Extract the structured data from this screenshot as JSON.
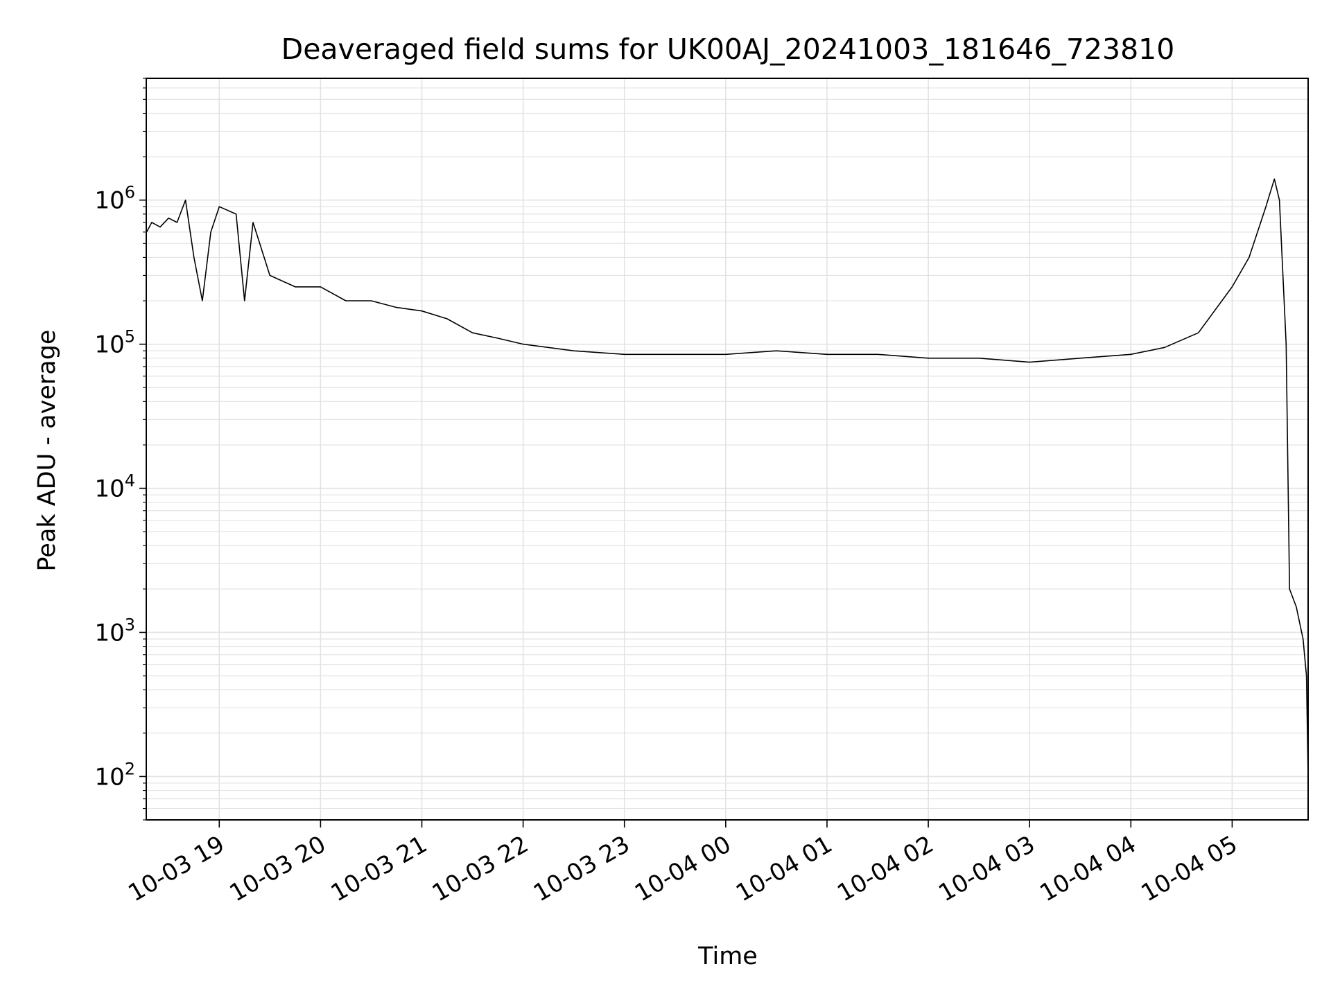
{
  "chart_data": {
    "type": "line",
    "title": "Deaveraged field sums for UK00AJ_20241003_181646_723810",
    "xlabel": "Time",
    "ylabel": "Peak ADU - average",
    "yscale": "log",
    "ylim": [
      50,
      7000000
    ],
    "xlim": [
      "2024-10-03 18:16:46",
      "2024-10-04 05:45:00"
    ],
    "grid": true,
    "x_tick_labels": [
      "10-03 19",
      "10-03 20",
      "10-03 21",
      "10-03 22",
      "10-03 23",
      "10-04 00",
      "10-04 01",
      "10-04 02",
      "10-04 03",
      "10-04 04",
      "10-04 05"
    ],
    "y_tick_labels": [
      {
        "base": "10",
        "exp": "2",
        "value": 100
      },
      {
        "base": "10",
        "exp": "3",
        "value": 1000
      },
      {
        "base": "10",
        "exp": "4",
        "value": 10000
      },
      {
        "base": "10",
        "exp": "5",
        "value": 100000
      },
      {
        "base": "10",
        "exp": "6",
        "value": 1000000
      }
    ],
    "line_color": "#000000",
    "grid_color": "#e3e3e3",
    "series": [
      {
        "x": [
          "2024-10-03 18:17",
          "2024-10-03 18:20",
          "2024-10-03 18:25",
          "2024-10-03 18:30",
          "2024-10-03 18:35",
          "2024-10-03 18:40",
          "2024-10-03 18:45",
          "2024-10-03 18:50",
          "2024-10-03 18:55",
          "2024-10-03 19:00",
          "2024-10-03 19:10",
          "2024-10-03 19:15",
          "2024-10-03 19:20",
          "2024-10-03 19:30",
          "2024-10-03 19:45",
          "2024-10-03 20:00",
          "2024-10-03 20:15",
          "2024-10-03 20:30",
          "2024-10-03 20:45",
          "2024-10-03 21:00",
          "2024-10-03 21:15",
          "2024-10-03 21:30",
          "2024-10-03 21:45",
          "2024-10-03 22:00",
          "2024-10-03 22:30",
          "2024-10-03 23:00",
          "2024-10-03 23:30",
          "2024-10-04 00:00",
          "2024-10-04 00:30",
          "2024-10-04 01:00",
          "2024-10-04 01:30",
          "2024-10-04 02:00",
          "2024-10-04 02:30",
          "2024-10-04 03:00",
          "2024-10-04 03:30",
          "2024-10-04 04:00",
          "2024-10-04 04:20",
          "2024-10-04 04:40",
          "2024-10-04 05:00",
          "2024-10-04 05:10",
          "2024-10-04 05:20",
          "2024-10-04 05:25",
          "2024-10-04 05:28",
          "2024-10-04 05:32",
          "2024-10-04 05:34",
          "2024-10-04 05:38",
          "2024-10-04 05:42",
          "2024-10-04 05:44",
          "2024-10-04 05:45"
        ],
        "y": [
          600000,
          700000,
          650000,
          750000,
          700000,
          1000000,
          400000,
          200000,
          600000,
          900000,
          800000,
          200000,
          700000,
          300000,
          250000,
          250000,
          200000,
          200000,
          180000,
          170000,
          150000,
          120000,
          110000,
          100000,
          90000,
          85000,
          85000,
          85000,
          90000,
          85000,
          85000,
          80000,
          80000,
          75000,
          80000,
          85000,
          95000,
          120000,
          250000,
          400000,
          900000,
          1400000,
          1000000,
          100000,
          2000,
          1500,
          900,
          500,
          100
        ]
      }
    ]
  }
}
